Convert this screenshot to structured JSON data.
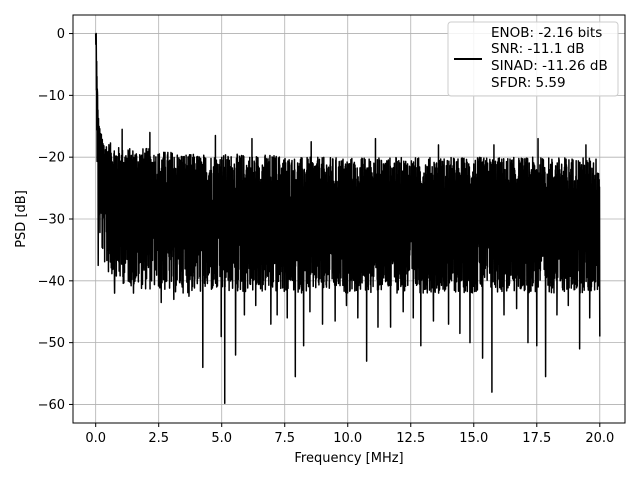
{
  "chart_data": {
    "type": "line",
    "title": "",
    "xlabel": "Frequency [MHz]",
    "ylabel": "PSD [dB]",
    "xlim": [
      -0.9,
      21.0
    ],
    "ylim": [
      -63.0,
      3.0
    ],
    "xticks": [
      0.0,
      2.5,
      5.0,
      7.5,
      10.0,
      12.5,
      15.0,
      17.5,
      20.0
    ],
    "xtick_labels": [
      "0.0",
      "2.5",
      "5.0",
      "7.5",
      "10.0",
      "12.5",
      "15.0",
      "17.5",
      "20.0"
    ],
    "yticks": [
      0,
      -10,
      -20,
      -30,
      -40,
      -50,
      -60
    ],
    "ytick_labels": [
      "0",
      "−10",
      "−20",
      "−30",
      "−40",
      "−50",
      "−60"
    ],
    "grid": true,
    "legend_position": "top-right",
    "series": [
      {
        "color": "#000000",
        "x": [
          0.0,
          0.03,
          0.06,
          0.1,
          0.15,
          0.2,
          0.3,
          0.4,
          0.5,
          0.75,
          1.0,
          1.5,
          2.0,
          2.5,
          3.0,
          4.0,
          5.0,
          6.0,
          7.0,
          8.0,
          9.0,
          10.0,
          11.0,
          12.0,
          13.0,
          14.0,
          15.0,
          16.0,
          17.0,
          18.0,
          19.0,
          20.0
        ],
        "y": [
          0.0,
          -5.0,
          -12.0,
          -16.0,
          -18.0,
          -20.0,
          -22.0,
          -24.0,
          -25.0,
          -26.0,
          -27.0,
          -27.5,
          -28.0,
          -28.5,
          -29.0,
          -29.5,
          -29.5,
          -30.0,
          -30.0,
          -30.0,
          -30.0,
          -30.0,
          -30.0,
          -30.0,
          -30.0,
          -30.0,
          -30.0,
          -30.0,
          -30.0,
          -30.0,
          -30.0,
          -30.0
        ],
        "upper_envelope_y": [
          0.0,
          -3.0,
          -8.0,
          -13.0,
          -15.0,
          -16.0,
          -17.0,
          -17.5,
          -17.5,
          -18.0,
          -18.5,
          -18.5,
          -18.5,
          -19.0,
          -19.0,
          -19.5,
          -19.5,
          -19.5,
          -19.5,
          -20.0,
          -20.0,
          -20.0,
          -20.0,
          -20.0,
          -20.0,
          -20.0,
          -20.0,
          -20.0,
          -20.0,
          -20.0,
          -20.0,
          -20.0
        ],
        "lower_envelope_y": [
          -1.0,
          -10.0,
          -24.0,
          -30.0,
          -33.0,
          -35.0,
          -37.0,
          -38.0,
          -39.0,
          -40.0,
          -40.5,
          -41.0,
          -41.5,
          -41.5,
          -42.0,
          -42.0,
          -42.0,
          -42.0,
          -42.0,
          -42.0,
          -42.0,
          -42.0,
          -42.0,
          -42.0,
          -42.0,
          -42.0,
          -42.0,
          -42.0,
          -42.0,
          -42.0,
          -42.0,
          -42.0
        ],
        "deep_notches": [
          {
            "x": 0.1,
            "y": -37.5
          },
          {
            "x": 0.75,
            "y": -42.0
          },
          {
            "x": 1.05,
            "y": -43.5
          },
          {
            "x": 1.5,
            "y": -42.0
          },
          {
            "x": 2.15,
            "y": -44.5
          },
          {
            "x": 2.6,
            "y": -43.5
          },
          {
            "x": 3.1,
            "y": -43.0
          },
          {
            "x": 3.7,
            "y": -42.5
          },
          {
            "x": 4.25,
            "y": -54.0
          },
          {
            "x": 4.8,
            "y": -41.0
          },
          {
            "x": 4.98,
            "y": -49.0
          },
          {
            "x": 5.12,
            "y": -59.8
          },
          {
            "x": 5.55,
            "y": -52.0
          },
          {
            "x": 5.9,
            "y": -45.5
          },
          {
            "x": 6.35,
            "y": -44.0
          },
          {
            "x": 6.95,
            "y": -47.0
          },
          {
            "x": 7.2,
            "y": -45.5
          },
          {
            "x": 7.6,
            "y": -46.0
          },
          {
            "x": 7.92,
            "y": -55.5
          },
          {
            "x": 8.25,
            "y": -50.5
          },
          {
            "x": 8.5,
            "y": -45.0
          },
          {
            "x": 9.0,
            "y": -47.0
          },
          {
            "x": 9.5,
            "y": -46.5
          },
          {
            "x": 9.95,
            "y": -44.0
          },
          {
            "x": 10.4,
            "y": -46.0
          },
          {
            "x": 10.75,
            "y": -53.0
          },
          {
            "x": 11.2,
            "y": -47.5
          },
          {
            "x": 11.7,
            "y": -47.5
          },
          {
            "x": 12.2,
            "y": -45.0
          },
          {
            "x": 12.6,
            "y": -46.0
          },
          {
            "x": 12.9,
            "y": -50.5
          },
          {
            "x": 13.4,
            "y": -46.5
          },
          {
            "x": 14.0,
            "y": -47.0
          },
          {
            "x": 14.45,
            "y": -48.5
          },
          {
            "x": 14.85,
            "y": -50.0
          },
          {
            "x": 15.35,
            "y": -52.5
          },
          {
            "x": 15.72,
            "y": -58.0
          },
          {
            "x": 16.2,
            "y": -45.5
          },
          {
            "x": 16.7,
            "y": -44.5
          },
          {
            "x": 17.15,
            "y": -50.0
          },
          {
            "x": 17.5,
            "y": -50.5
          },
          {
            "x": 17.85,
            "y": -55.5
          },
          {
            "x": 18.3,
            "y": -45.5
          },
          {
            "x": 18.75,
            "y": -44.0
          },
          {
            "x": 19.2,
            "y": -51.0
          },
          {
            "x": 19.6,
            "y": -46.0
          },
          {
            "x": 20.0,
            "y": -49.0
          }
        ],
        "tall_peaks": [
          {
            "x": 0.02,
            "y": 0.0
          },
          {
            "x": 0.04,
            "y": -4.5
          },
          {
            "x": 0.07,
            "y": -9.5
          },
          {
            "x": 1.05,
            "y": -15.5
          },
          {
            "x": 2.15,
            "y": -16.0
          },
          {
            "x": 4.75,
            "y": -16.5
          },
          {
            "x": 6.2,
            "y": -17.0
          },
          {
            "x": 8.55,
            "y": -17.5
          },
          {
            "x": 11.1,
            "y": -17.0
          },
          {
            "x": 13.6,
            "y": -18.0
          },
          {
            "x": 15.8,
            "y": -18.0
          },
          {
            "x": 17.55,
            "y": -17.0
          },
          {
            "x": 19.45,
            "y": -18.0
          }
        ]
      }
    ],
    "legend": {
      "lines": [
        "ENOB: -2.16 bits",
        "SNR: -11.1 dB",
        "SINAD: -11.26 dB",
        "SFDR: 5.59"
      ]
    }
  }
}
